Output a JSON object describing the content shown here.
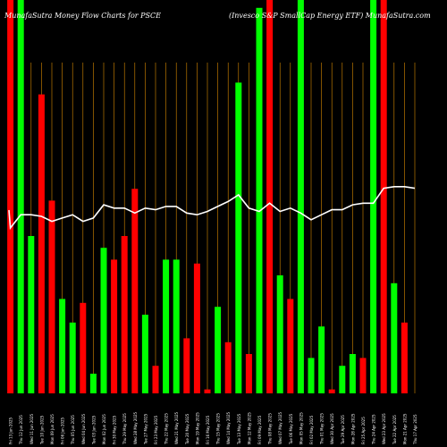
{
  "header": {
    "left": "MunafaSutra  Money Flow  Charts for PSCE",
    "right": "(Invesco  S&P SmallCap Energy ETF) MunafaSutra.com"
  },
  "colors": {
    "background": "#000000",
    "up": "#00ff00",
    "down": "#ff0000",
    "line": "#ffffff",
    "grid": "#d98a00"
  },
  "chart_data": {
    "type": "bar",
    "ylim": [
      0,
      100
    ],
    "grid": "vertical",
    "categories": [
      "Fri 13 Jun 2025",
      "Thu 12 Jun 2025",
      "Wed 11 Jun 2025",
      "Tue 10 Jun 2025",
      "Mon 09 Jun 2025",
      "Fri 06 Jun 2025",
      "Thu 05 Jun 2025",
      "Wed 04 Jun 2025",
      "Tue 03 Jun 2025",
      "Mon 02 Jun 2025",
      "Fri 30 May 2025",
      "Thu 29 May 2025",
      "Wed 28 May 2025",
      "Tue 27 May 2025",
      "Fri 23 May 2025",
      "Thu 22 May 2025",
      "Wed 21 May 2025",
      "Tue 20 May 2025",
      "Mon 19 May 2025",
      "Fri 16 May 2025",
      "Thu 15 May 2025",
      "Wed 14 May 2025",
      "Tue 13 May 2025",
      "Mon 12 May 2025",
      "Fri 09 May 2025",
      "Thu 08 May 2025",
      "Wed 07 May 2025",
      "Tue 06 May 2025",
      "Mon 05 May 2025",
      "Fri 02 May 2025",
      "Thu 01 May 2025",
      "Wed 30 Apr 2025",
      "Tue 29 Apr 2025",
      "Mon 28 Apr 2025",
      "Fri 25 Apr 2025",
      "Thu 24 Apr 2025",
      "Wed 23 Apr 2025",
      "Tue 22 Apr 2025",
      "Mon 21 Apr 2025",
      "Thu 17 Apr 2025"
    ],
    "bars": [
      {
        "value": 100,
        "dir": "down"
      },
      {
        "value": 100,
        "dir": "up"
      },
      {
        "value": 40,
        "dir": "up"
      },
      {
        "value": 76,
        "dir": "down"
      },
      {
        "value": 49,
        "dir": "down"
      },
      {
        "value": 24,
        "dir": "up"
      },
      {
        "value": 18,
        "dir": "up"
      },
      {
        "value": 23,
        "dir": "down"
      },
      {
        "value": 5,
        "dir": "up"
      },
      {
        "value": 37,
        "dir": "up"
      },
      {
        "value": 34,
        "dir": "down"
      },
      {
        "value": 40,
        "dir": "down"
      },
      {
        "value": 52,
        "dir": "down"
      },
      {
        "value": 20,
        "dir": "up"
      },
      {
        "value": 7,
        "dir": "down"
      },
      {
        "value": 34,
        "dir": "up"
      },
      {
        "value": 34,
        "dir": "up"
      },
      {
        "value": 14,
        "dir": "down"
      },
      {
        "value": 33,
        "dir": "down"
      },
      {
        "value": 1,
        "dir": "down"
      },
      {
        "value": 22,
        "dir": "up"
      },
      {
        "value": 13,
        "dir": "down"
      },
      {
        "value": 79,
        "dir": "up"
      },
      {
        "value": 10,
        "dir": "down"
      },
      {
        "value": 98,
        "dir": "up"
      },
      {
        "value": 100,
        "dir": "down"
      },
      {
        "value": 30,
        "dir": "up"
      },
      {
        "value": 24,
        "dir": "down"
      },
      {
        "value": 100,
        "dir": "up"
      },
      {
        "value": 9,
        "dir": "up"
      },
      {
        "value": 17,
        "dir": "up"
      },
      {
        "value": 1,
        "dir": "down"
      },
      {
        "value": 7,
        "dir": "up"
      },
      {
        "value": 10,
        "dir": "up"
      },
      {
        "value": 9,
        "dir": "down"
      },
      {
        "value": 100,
        "dir": "up"
      },
      {
        "value": 100,
        "dir": "down"
      },
      {
        "value": 28,
        "dir": "up"
      },
      {
        "value": 18,
        "dir": "down"
      },
      {
        "value": 0,
        "dir": "down"
      }
    ],
    "line": [
      50,
      54,
      54,
      53.5,
      52,
      53,
      54,
      52,
      53,
      57,
      56,
      56,
      54.5,
      56,
      55.5,
      56.5,
      56.5,
      54.5,
      54,
      55,
      56.5,
      58,
      60,
      56,
      55,
      57.5,
      55,
      56,
      54.5,
      52.5,
      54,
      55.5,
      55.5,
      57,
      57.5,
      57.5,
      62,
      62.5,
      62.5,
      62
    ]
  }
}
